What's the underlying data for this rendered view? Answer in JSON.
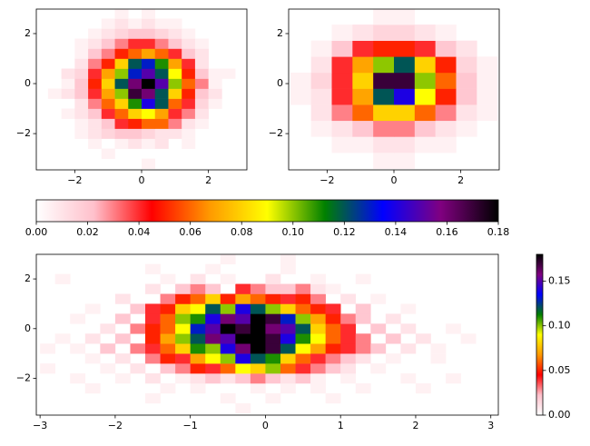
{
  "chart_data": [
    {
      "type": "heatmap",
      "xlim": [
        -3.15,
        3.15
      ],
      "ylim": [
        -3.45,
        2.98
      ],
      "xticks": [
        {
          "value": -2,
          "label": "−2"
        },
        0,
        2
      ],
      "yticks": [
        {
          "value": -2,
          "label": "−2"
        },
        0,
        2
      ],
      "clim": [
        0,
        0.18
      ],
      "colormap": [
        "#ffffff",
        "#ffc0cb",
        "#ff0000",
        "#ff9900",
        "#ffff00",
        "#008000",
        "#0000ff",
        "#800080",
        "#000000"
      ],
      "xedges": [
        -3.2,
        -2.8,
        -2.4,
        -2.0,
        -1.6,
        -1.2,
        -0.8,
        -0.4,
        0.0,
        0.4,
        0.8,
        1.2,
        1.6,
        2.0,
        2.4,
        2.8,
        3.2
      ],
      "yedges": [
        -3.4,
        -3.0,
        -2.6,
        -2.2,
        -1.8,
        -1.4,
        -1.0,
        -0.6,
        -0.2,
        0.2,
        0.6,
        1.0,
        1.4,
        1.8,
        2.2,
        2.6,
        3.0
      ],
      "z": [
        [
          null,
          null,
          null,
          null,
          null,
          null,
          null,
          null,
          0.005,
          null,
          null,
          null,
          null,
          null,
          null,
          null
        ],
        [
          null,
          null,
          null,
          null,
          null,
          0.005,
          null,
          null,
          null,
          null,
          null,
          null,
          null,
          null,
          null,
          null
        ],
        [
          null,
          null,
          null,
          null,
          0.005,
          null,
          0.005,
          0.01,
          0.005,
          0.01,
          null,
          0.005,
          null,
          null,
          null,
          null
        ],
        [
          null,
          null,
          null,
          0.005,
          0.01,
          0.015,
          0.02,
          0.02,
          0.015,
          0.01,
          0.01,
          0.005,
          null,
          null,
          null,
          null
        ],
        [
          null,
          null,
          null,
          0.005,
          0.01,
          0.02,
          0.04,
          0.05,
          0.06,
          0.06,
          0.03,
          0.01,
          0.005,
          null,
          null,
          null
        ],
        [
          null,
          null,
          0.005,
          0.01,
          0.02,
          0.04,
          0.06,
          0.08,
          0.09,
          0.07,
          0.04,
          0.03,
          0.01,
          null,
          null,
          null
        ],
        [
          null,
          null,
          null,
          0.01,
          0.03,
          0.06,
          0.08,
          0.11,
          0.14,
          0.12,
          0.06,
          0.04,
          0.015,
          0.005,
          null,
          null
        ],
        [
          null,
          0.005,
          0.01,
          0.02,
          0.04,
          0.07,
          0.1,
          0.17,
          0.16,
          0.12,
          0.08,
          0.05,
          0.02,
          0.01,
          null,
          null
        ],
        [
          null,
          null,
          0.005,
          0.02,
          0.05,
          0.08,
          0.12,
          0.16,
          0.18,
          0.15,
          0.1,
          0.06,
          0.03,
          0.005,
          null,
          null
        ],
        [
          null,
          null,
          0.01,
          0.015,
          0.04,
          0.07,
          0.1,
          0.13,
          0.15,
          0.12,
          0.09,
          0.05,
          0.02,
          0.005,
          0.005,
          null
        ],
        [
          null,
          null,
          null,
          0.01,
          0.03,
          0.05,
          0.08,
          0.12,
          0.13,
          0.11,
          0.07,
          0.04,
          0.01,
          null,
          null,
          null
        ],
        [
          null,
          null,
          null,
          0.005,
          0.02,
          0.03,
          0.05,
          0.06,
          0.07,
          0.06,
          0.04,
          0.02,
          0.01,
          null,
          null,
          null
        ],
        [
          null,
          null,
          null,
          0.005,
          0.01,
          0.02,
          0.03,
          0.04,
          0.04,
          0.03,
          0.02,
          0.01,
          0.005,
          null,
          null,
          null
        ],
        [
          null,
          null,
          null,
          null,
          0.005,
          0.01,
          0.015,
          0.02,
          0.02,
          0.015,
          0.01,
          0.005,
          null,
          null,
          null,
          null
        ],
        [
          null,
          null,
          null,
          null,
          null,
          0.005,
          0.01,
          0.005,
          0.01,
          0.005,
          0.005,
          null,
          null,
          null,
          null,
          null
        ],
        [
          null,
          null,
          null,
          null,
          null,
          null,
          0.005,
          null,
          0.005,
          null,
          null,
          null,
          null,
          null,
          null,
          null
        ]
      ]
    },
    {
      "type": "heatmap",
      "xlim": [
        -3.15,
        3.15
      ],
      "ylim": [
        -3.45,
        2.98
      ],
      "xticks": [
        {
          "value": -2,
          "label": "−2"
        },
        0,
        2
      ],
      "yticks": [
        {
          "value": -2,
          "label": "−2"
        },
        0,
        2
      ],
      "clim": [
        0,
        0.18
      ],
      "colormap": [
        "#ffffff",
        "#ffc0cb",
        "#ff0000",
        "#ff9900",
        "#ffff00",
        "#008000",
        "#0000ff",
        "#800080",
        "#000000"
      ],
      "xedges": [
        -3.1,
        -2.48,
        -1.86,
        -1.24,
        -0.62,
        0,
        0.62,
        1.24,
        1.86,
        2.48,
        3.1
      ],
      "yedges": [
        -3.4,
        -2.76,
        -2.12,
        -1.48,
        -0.84,
        -0.2,
        0.44,
        1.08,
        1.72,
        2.36,
        3.0
      ],
      "z": [
        [
          null,
          null,
          null,
          null,
          0.005,
          0.005,
          null,
          null,
          null,
          null
        ],
        [
          null,
          null,
          0.005,
          0.005,
          0.01,
          0.01,
          0.005,
          0.005,
          null,
          null
        ],
        [
          null,
          0.005,
          0.01,
          0.02,
          0.03,
          0.03,
          0.02,
          0.01,
          0.005,
          null
        ],
        [
          null,
          0.01,
          0.03,
          0.06,
          0.08,
          0.08,
          0.06,
          0.03,
          0.01,
          0.005
        ],
        [
          0.005,
          0.01,
          0.04,
          0.07,
          0.12,
          0.14,
          0.09,
          0.05,
          0.02,
          0.005
        ],
        [
          0.005,
          0.015,
          0.04,
          0.08,
          0.17,
          0.17,
          0.1,
          0.06,
          0.02,
          0.005
        ],
        [
          null,
          0.01,
          0.04,
          0.07,
          0.1,
          0.12,
          0.08,
          0.05,
          0.015,
          0.005
        ],
        [
          null,
          0.005,
          0.02,
          0.04,
          0.05,
          0.05,
          0.04,
          0.02,
          0.01,
          null
        ],
        [
          null,
          null,
          0.005,
          0.01,
          0.015,
          0.015,
          0.01,
          0.005,
          null,
          null
        ],
        [
          null,
          null,
          null,
          null,
          0.005,
          0.005,
          null,
          null,
          null,
          null
        ]
      ]
    },
    {
      "type": "heatmap",
      "xlim": [
        -3.05,
        3.1
      ],
      "ylim": [
        -3.48,
        2.99
      ],
      "xticks": [
        {
          "value": -3,
          "label": "−3"
        },
        {
          "value": -2,
          "label": "−2"
        },
        {
          "value": -1,
          "label": "−1"
        },
        0,
        1,
        2,
        3
      ],
      "yticks": [
        {
          "value": -2,
          "label": "−2"
        },
        0,
        2
      ],
      "clim": [
        0,
        0.18
      ],
      "colormap": [
        "#ffffff",
        "#ffc0cb",
        "#ff0000",
        "#ff9900",
        "#ffff00",
        "#008000",
        "#0000ff",
        "#800080",
        "#000000"
      ],
      "xedges": [
        -3.0,
        -2.8,
        -2.6,
        -2.4,
        -2.2,
        -2.0,
        -1.8,
        -1.6,
        -1.4,
        -1.2,
        -1.0,
        -0.8,
        -0.6,
        -0.4,
        -0.2,
        0.0,
        0.2,
        0.4,
        0.6,
        0.8,
        1.0,
        1.2,
        1.4,
        1.6,
        1.8,
        2.0,
        2.2,
        2.4,
        2.6,
        2.8,
        3.0
      ],
      "yedges": [
        -3.4,
        -3.0,
        -2.6,
        -2.2,
        -1.8,
        -1.4,
        -1.0,
        -0.6,
        -0.2,
        0.2,
        0.6,
        1.0,
        1.4,
        1.8,
        2.2,
        2.6,
        3.0
      ],
      "z": [
        [
          null,
          null,
          null,
          null,
          null,
          null,
          null,
          null,
          null,
          null,
          null,
          null,
          null,
          0.005,
          null,
          null,
          null,
          null,
          null,
          null,
          null,
          null,
          null,
          null,
          null,
          null,
          null,
          null,
          null,
          null
        ],
        [
          null,
          null,
          null,
          null,
          null,
          null,
          null,
          0.005,
          null,
          null,
          null,
          null,
          0.005,
          null,
          null,
          0.005,
          null,
          null,
          null,
          0.005,
          null,
          null,
          null,
          null,
          null,
          null,
          null,
          null,
          null,
          null
        ],
        [
          null,
          null,
          null,
          0.005,
          null,
          null,
          null,
          null,
          0.005,
          null,
          0.005,
          null,
          null,
          null,
          0.005,
          null,
          0.005,
          null,
          0.005,
          null,
          null,
          0.005,
          null,
          null,
          null,
          0.005,
          null,
          null,
          null,
          null
        ],
        [
          null,
          null,
          0.005,
          null,
          null,
          0.005,
          null,
          0.01,
          null,
          0.005,
          0.01,
          0.02,
          0.01,
          0.02,
          0.03,
          0.02,
          0.01,
          0.02,
          0.005,
          null,
          0.005,
          null,
          null,
          null,
          0.005,
          null,
          null,
          0.005,
          null,
          null
        ],
        [
          0.005,
          null,
          null,
          null,
          0.005,
          null,
          0.01,
          null,
          0.02,
          0.03,
          0.05,
          0.04,
          0.06,
          0.09,
          0.08,
          0.1,
          0.06,
          0.04,
          0.03,
          0.02,
          0.01,
          null,
          0.005,
          null,
          null,
          null,
          null,
          null,
          null,
          null
        ],
        [
          null,
          null,
          null,
          0.005,
          null,
          0.01,
          null,
          0.03,
          0.05,
          0.04,
          0.07,
          0.09,
          0.1,
          0.14,
          0.12,
          0.11,
          0.08,
          0.06,
          0.04,
          0.03,
          0.02,
          0.01,
          null,
          0.005,
          null,
          null,
          0.005,
          null,
          null,
          null
        ],
        [
          0.005,
          null,
          0.005,
          null,
          0.02,
          null,
          0.03,
          0.04,
          0.06,
          0.08,
          0.11,
          0.1,
          0.14,
          0.16,
          0.18,
          0.17,
          0.12,
          0.09,
          0.07,
          0.05,
          0.04,
          0.03,
          0.02,
          null,
          0.01,
          null,
          0.005,
          null,
          null,
          null
        ],
        [
          null,
          0.005,
          null,
          0.01,
          null,
          0.02,
          null,
          0.05,
          0.07,
          0.1,
          0.12,
          0.16,
          0.15,
          0.18,
          0.18,
          0.17,
          0.14,
          0.11,
          0.09,
          0.06,
          0.04,
          0.03,
          null,
          0.02,
          null,
          0.01,
          null,
          null,
          0.005,
          null
        ],
        [
          null,
          null,
          null,
          null,
          0.01,
          null,
          0.03,
          0.05,
          0.06,
          0.09,
          0.13,
          0.15,
          0.18,
          0.17,
          0.18,
          0.16,
          0.15,
          0.12,
          0.08,
          0.06,
          0.04,
          null,
          0.02,
          null,
          0.01,
          null,
          null,
          0.005,
          null,
          null
        ],
        [
          null,
          null,
          0.005,
          null,
          null,
          0.02,
          null,
          0.04,
          0.06,
          0.1,
          0.11,
          0.14,
          0.16,
          0.15,
          0.18,
          0.17,
          0.13,
          0.1,
          0.07,
          0.05,
          0.03,
          0.02,
          null,
          0.01,
          null,
          null,
          null,
          null,
          null,
          null
        ],
        [
          null,
          null,
          null,
          0.005,
          null,
          null,
          0.02,
          0.04,
          0.05,
          0.08,
          0.09,
          0.12,
          0.1,
          0.14,
          0.12,
          0.1,
          0.08,
          0.06,
          0.05,
          0.04,
          null,
          0.02,
          null,
          null,
          0.005,
          null,
          null,
          null,
          null,
          null
        ],
        [
          null,
          null,
          null,
          null,
          null,
          0.01,
          null,
          null,
          0.03,
          0.05,
          0.06,
          0.08,
          0.05,
          0.07,
          0.06,
          0.05,
          0.04,
          0.05,
          0.03,
          null,
          0.01,
          null,
          0.005,
          null,
          null,
          null,
          null,
          null,
          null,
          null
        ],
        [
          null,
          null,
          null,
          null,
          null,
          null,
          null,
          0.01,
          null,
          0.02,
          0.03,
          0.02,
          null,
          0.04,
          0.03,
          0.02,
          0.02,
          0.03,
          0.01,
          0.005,
          null,
          null,
          null,
          null,
          null,
          null,
          null,
          null,
          null,
          null
        ],
        [
          null,
          0.005,
          null,
          null,
          null,
          null,
          null,
          null,
          0.005,
          null,
          0.01,
          null,
          0.005,
          null,
          null,
          0.01,
          null,
          null,
          0.005,
          null,
          null,
          0.005,
          null,
          null,
          null,
          null,
          null,
          null,
          null,
          null
        ],
        [
          null,
          null,
          null,
          null,
          null,
          null,
          null,
          0.005,
          null,
          null,
          null,
          0.005,
          null,
          null,
          null,
          null,
          0.005,
          null,
          null,
          null,
          null,
          null,
          null,
          null,
          null,
          null,
          null,
          null,
          null,
          null
        ],
        [
          null,
          null,
          null,
          null,
          null,
          null,
          null,
          null,
          null,
          null,
          null,
          null,
          0.005,
          null,
          null,
          null,
          0.005,
          null,
          null,
          null,
          null,
          null,
          null,
          null,
          null,
          null,
          null,
          null,
          null,
          null
        ]
      ]
    },
    {
      "type": "colorbar",
      "orientation": "horizontal",
      "clim": [
        0,
        0.18
      ],
      "colormap": [
        "#ffffff",
        "#ffc0cb",
        "#ff0000",
        "#ff9900",
        "#ffff00",
        "#008000",
        "#0000ff",
        "#800080",
        "#000000"
      ],
      "ticks": [
        {
          "value": 0,
          "label": "0.00"
        },
        {
          "value": 0.02,
          "label": "0.02"
        },
        {
          "value": 0.04,
          "label": "0.04"
        },
        {
          "value": 0.06,
          "label": "0.06"
        },
        {
          "value": 0.08,
          "label": "0.08"
        },
        {
          "value": 0.1,
          "label": "0.10"
        },
        {
          "value": 0.12,
          "label": "0.12"
        },
        {
          "value": 0.14,
          "label": "0.14"
        },
        {
          "value": 0.16,
          "label": "0.16"
        },
        {
          "value": 0.18,
          "label": "0.18"
        }
      ]
    },
    {
      "type": "colorbar",
      "orientation": "vertical",
      "clim": [
        0,
        0.18
      ],
      "colormap": [
        "#ffffff",
        "#ffc0cb",
        "#ff0000",
        "#ff9900",
        "#ffff00",
        "#008000",
        "#0000ff",
        "#800080",
        "#000000"
      ],
      "ticks": [
        {
          "value": 0,
          "label": "0.00"
        },
        {
          "value": 0.05,
          "label": "0.05"
        },
        {
          "value": 0.1,
          "label": "0.10"
        },
        {
          "value": 0.15,
          "label": "0.15"
        }
      ]
    }
  ]
}
